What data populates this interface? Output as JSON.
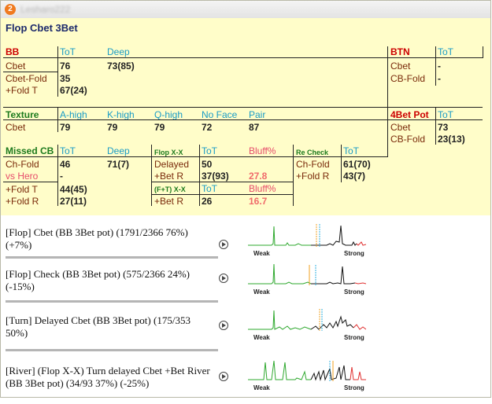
{
  "hud": {
    "badge": "2",
    "player_name": "Lesharo222"
  },
  "panel": {
    "title": "Flop Cbet 3Bet",
    "bb": {
      "header": "BB",
      "col_tot": "ToT",
      "col_deep": "Deep",
      "rows": [
        {
          "label": "Cbet",
          "tot": "76",
          "deep": "73(85)"
        },
        {
          "label": "Cbet-Fold",
          "tot": "35",
          "deep": ""
        },
        {
          "label": "+Fold T",
          "tot": "67(24)",
          "deep": ""
        }
      ]
    },
    "btn": {
      "header": "BTN",
      "col_tot": "ToT",
      "rows": [
        {
          "label": "Cbet",
          "tot": "-"
        },
        {
          "label": "CB-Fold",
          "tot": "-"
        }
      ]
    },
    "texture": {
      "header": "Texture",
      "cols": [
        "A-high",
        "K-high",
        "Q-high",
        "No Face",
        "Pair"
      ],
      "row_label": "Cbet",
      "values": [
        "79",
        "79",
        "79",
        "72",
        "87"
      ]
    },
    "fourbet": {
      "header": "4Bet Pot",
      "col_tot": "ToT",
      "rows": [
        {
          "label": "Cbet",
          "tot": "73"
        },
        {
          "label": "CB-Fold",
          "tot": "23(13)"
        }
      ]
    },
    "missed_cb": {
      "header": "Missed CB",
      "col_tot": "ToT",
      "col_deep": "Deep",
      "rows": [
        {
          "label": "Ch-Fold",
          "tot": "46",
          "deep": "71(7)"
        },
        {
          "label": "vs Hero",
          "tot": "-",
          "deep": ""
        },
        {
          "label": "+Fold T",
          "tot": "44(45)",
          "deep": ""
        },
        {
          "label": "+Fold R",
          "tot": "27(11)",
          "deep": ""
        }
      ]
    },
    "flop_xx": {
      "header": "Flop X-X",
      "col_tot": "ToT",
      "col_bluff": "Bluff%",
      "rows": [
        {
          "label": "Delayed",
          "tot": "50",
          "bluff": ""
        },
        {
          "label": "+Bet R",
          "tot": "37(93)",
          "bluff": "27.8"
        }
      ],
      "sub_header": "(F+T) X-X",
      "sub_col_tot": "ToT",
      "sub_col_bluff": "Bluff%",
      "sub_row": {
        "label": "+Bet R",
        "tot": "26",
        "bluff": "16.7"
      }
    },
    "re_check": {
      "header": "Re Check",
      "col_tot": "ToT",
      "rows": [
        {
          "label": "Ch-Fold",
          "tot": "61(70)"
        },
        {
          "label": "+Fold R",
          "tot": "43(7)"
        }
      ]
    }
  },
  "lines": [
    {
      "text": "[Flop] Cbet (BB 3Bet pot) (1791/2366 76%) (+7%)",
      "weak": "Weak",
      "strong": "Strong"
    },
    {
      "text": "[Flop] Check (BB 3Bet pot) (575/2366 24%) (-15%)",
      "weak": "Weak",
      "strong": "Strong"
    },
    {
      "text": "[Turn] Delayed Cbet (BB 3Bet pot) (175/353 50%)",
      "weak": "Weak",
      "strong": "Strong"
    },
    {
      "text": "[River] (Flop X-X) Turn delayed Cbet +Bet River (BB 3Bet pot) (34/93 37%) (-25%)",
      "weak": "Weak",
      "strong": "Strong"
    }
  ],
  "colors": {
    "panel_bg": "#fffdc9",
    "header_red": "#cc0000",
    "header_green": "#1d7a1d",
    "col_teal": "#1a9cc6",
    "label_brown": "#7a2a0a",
    "bluff_salmon": "#f06b6b",
    "spark_green": "#2ea82e",
    "spark_black": "#111111",
    "spark_red": "#e03030"
  }
}
